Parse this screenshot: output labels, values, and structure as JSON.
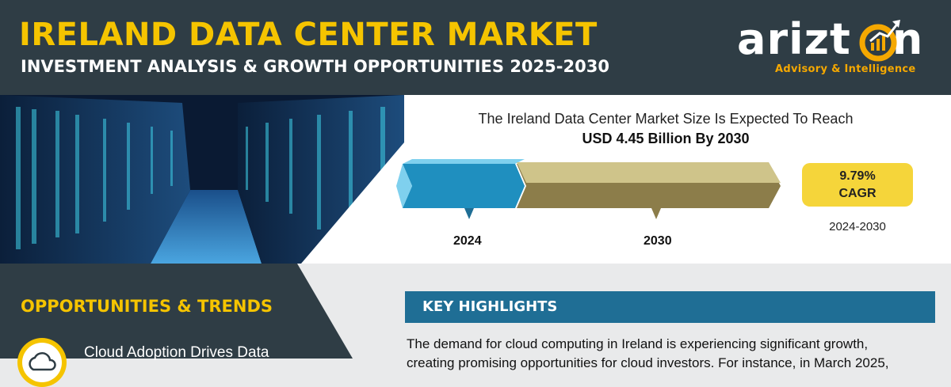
{
  "header": {
    "title": "IRELAND DATA CENTER MARKET",
    "subtitle": "INVESTMENT ANALYSIS & GROWTH OPPORTUNITIES 2025-2030"
  },
  "logo": {
    "word_left": "arizt",
    "word_right": "n",
    "tagline": "Advisory & Intelligence"
  },
  "market": {
    "line1": "The Ireland Data Center Market Size Is Expected To Reach",
    "line2": "USD 4.45 Billion By 2030",
    "years": [
      "2024",
      "2030"
    ],
    "cagr_value": "9.79%",
    "cagr_label": "CAGR",
    "cagr_period": "2024-2030"
  },
  "opportunities": {
    "title": "OPPORTUNITIES & TRENDS",
    "items": [
      "Cloud Adoption Drives Data"
    ]
  },
  "key_highlights": {
    "title": "KEY HIGHLIGHTS",
    "text": "The demand for cloud computing in Ireland is experiencing significant growth,",
    "text_line2": "creating promising opportunities for cloud investors. For instance, in March 2025,"
  },
  "colors": {
    "header_bg": "#2f3d45",
    "accent_yellow": "#f5c400",
    "bar_blue": "#1f8fbf",
    "bar_tan": "#cfc48a",
    "cagr_box": "#f5d53a",
    "kh_blue": "#1f6e95"
  },
  "icons": [
    "cloud-icon",
    "target-arrow-icon"
  ]
}
